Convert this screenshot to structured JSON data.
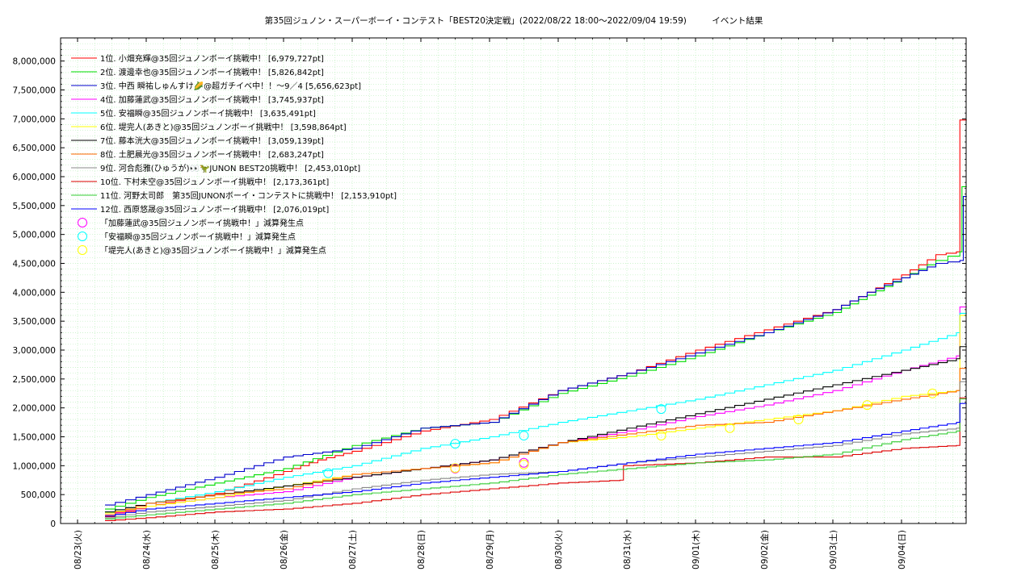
{
  "chart_data": {
    "type": "line",
    "title": "第35回ジュノン・スーパーボーイ・コンテスト「BEST20決定戦」(2022/08/22 18:00〜2022/09/04 19:59)　　　イベント結果",
    "xlabel": "",
    "ylabel": "",
    "x_tick_labels": [
      "08/23(火)",
      "08/24(水)",
      "08/25(木)",
      "08/26(金)",
      "08/27(土)",
      "08/28(日)",
      "08/29(月)",
      "08/30(火)",
      "08/31(水)",
      "09/01(木)",
      "09/02(金)",
      "09/03(土)",
      "09/04(日)"
    ],
    "y_tick_labels": [
      "0",
      "500,000",
      "1,000,000",
      "1,500,000",
      "2,000,000",
      "2,500,000",
      "3,000,000",
      "3,500,000",
      "4,000,000",
      "4,500,000",
      "5,000,000",
      "5,500,000",
      "6,000,000",
      "6,500,000",
      "7,000,000",
      "7,500,000",
      "8,000,000"
    ],
    "xlim_days": [
      0,
      13.25
    ],
    "ylim": [
      0,
      8400000
    ],
    "grid": true,
    "legend_position": "top-left",
    "series": [
      {
        "name": "1位. 小畑充輝@35回ジュノンボーイ挑戦中！ [6,979,727pt]",
        "color": "#ff0000",
        "points": [
          [
            0.4,
            120000
          ],
          [
            1,
            300000
          ],
          [
            2,
            520000
          ],
          [
            3,
            900000
          ],
          [
            3.5,
            1100000
          ],
          [
            4,
            1250000
          ],
          [
            5,
            1600000
          ],
          [
            6,
            1800000
          ],
          [
            7,
            2300000
          ],
          [
            8,
            2600000
          ],
          [
            9,
            3000000
          ],
          [
            10,
            3350000
          ],
          [
            11,
            3700000
          ],
          [
            11.5,
            4000000
          ],
          [
            12,
            4300000
          ],
          [
            12.5,
            4650000
          ],
          [
            12.8,
            4700000
          ],
          [
            12.85,
            6979727
          ],
          [
            12.95,
            6979727
          ]
        ]
      },
      {
        "name": "2位. 渡邊幸也@35回ジュノンボーイ挑戦中！ [5,826,842pt]",
        "color": "#00dd00",
        "points": [
          [
            0.4,
            250000
          ],
          [
            1,
            450000
          ],
          [
            2,
            700000
          ],
          [
            3,
            950000
          ],
          [
            4,
            1350000
          ],
          [
            5,
            1650000
          ],
          [
            6,
            1750000
          ],
          [
            7,
            2250000
          ],
          [
            8,
            2550000
          ],
          [
            9,
            2900000
          ],
          [
            10,
            3300000
          ],
          [
            11,
            3650000
          ],
          [
            11.5,
            3950000
          ],
          [
            12,
            4250000
          ],
          [
            12.5,
            4550000
          ],
          [
            12.85,
            4700000
          ],
          [
            12.88,
            5826842
          ],
          [
            12.95,
            5826842
          ]
        ]
      },
      {
        "name": "3位. 中西 瞬祐しゅんすけ🌽@超ガチイベ中！！〜9／4 [5,656,623pt]",
        "color": "#0000cc",
        "points": [
          [
            0.4,
            320000
          ],
          [
            1,
            500000
          ],
          [
            2,
            800000
          ],
          [
            3,
            1150000
          ],
          [
            4,
            1300000
          ],
          [
            5,
            1650000
          ],
          [
            6,
            1750000
          ],
          [
            7,
            2300000
          ],
          [
            8,
            2600000
          ],
          [
            9,
            2950000
          ],
          [
            10,
            3300000
          ],
          [
            11,
            3700000
          ],
          [
            11.5,
            4000000
          ],
          [
            12,
            4250000
          ],
          [
            12.5,
            4500000
          ],
          [
            12.85,
            4550000
          ],
          [
            12.9,
            5656623
          ],
          [
            12.95,
            5656623
          ]
        ]
      },
      {
        "name": "4位. 加藤蓮武@35回ジュノンボーイ挑戦中！ [3,745,937pt]",
        "color": "#ff00ff",
        "points": [
          [
            0.4,
            150000
          ],
          [
            1,
            300000
          ],
          [
            2,
            450000
          ],
          [
            3,
            550000
          ],
          [
            4,
            800000
          ],
          [
            5,
            950000
          ],
          [
            6,
            1100000
          ],
          [
            7,
            1400000
          ],
          [
            8,
            1600000
          ],
          [
            9,
            1850000
          ],
          [
            10,
            2050000
          ],
          [
            11,
            2300000
          ],
          [
            12,
            2650000
          ],
          [
            12.8,
            2900000
          ],
          [
            12.85,
            3745937
          ],
          [
            12.95,
            3745937
          ]
        ]
      },
      {
        "name": "5位. 安福瞬@35回ジュノンボーイ挑戦中！ [3,635,491pt]",
        "color": "#00ffff",
        "points": [
          [
            0.4,
            200000
          ],
          [
            1,
            350000
          ],
          [
            2,
            550000
          ],
          [
            3,
            800000
          ],
          [
            4,
            1000000
          ],
          [
            5,
            1300000
          ],
          [
            6,
            1500000
          ],
          [
            7,
            1750000
          ],
          [
            8,
            1950000
          ],
          [
            9,
            2150000
          ],
          [
            10,
            2400000
          ],
          [
            11,
            2650000
          ],
          [
            12,
            3000000
          ],
          [
            12.8,
            3300000
          ],
          [
            12.85,
            3635491
          ],
          [
            12.95,
            3635491
          ]
        ]
      },
      {
        "name": "6位. 堤完人(あきと)@35回ジュノンボーイ挑戦中！ [3,598,864pt]",
        "color": "#ffff00",
        "points": [
          [
            0.4,
            180000
          ],
          [
            1,
            300000
          ],
          [
            2,
            450000
          ],
          [
            3,
            650000
          ],
          [
            4,
            850000
          ],
          [
            5,
            950000
          ],
          [
            6,
            1050000
          ],
          [
            7,
            1400000
          ],
          [
            8,
            1500000
          ],
          [
            9,
            1650000
          ],
          [
            10,
            1800000
          ],
          [
            11,
            1950000
          ],
          [
            12,
            2200000
          ],
          [
            12.8,
            2300000
          ],
          [
            12.85,
            3598864
          ],
          [
            12.95,
            3598864
          ]
        ]
      },
      {
        "name": "7位. 藤本洸大@35回ジュノンボーイ挑戦中！ [3,059,139pt]",
        "color": "#000000",
        "points": [
          [
            0.4,
            200000
          ],
          [
            1,
            350000
          ],
          [
            2,
            500000
          ],
          [
            3,
            650000
          ],
          [
            4,
            800000
          ],
          [
            5,
            950000
          ],
          [
            6,
            1100000
          ],
          [
            7,
            1400000
          ],
          [
            8,
            1650000
          ],
          [
            9,
            1900000
          ],
          [
            10,
            2150000
          ],
          [
            11,
            2400000
          ],
          [
            12,
            2650000
          ],
          [
            12.8,
            2850000
          ],
          [
            12.85,
            3059139
          ],
          [
            12.95,
            3059139
          ]
        ]
      },
      {
        "name": "8位. 土肥晨光@35回ジュノンボーイ挑戦中！ [2,683,247pt]",
        "color": "#ff6600",
        "points": [
          [
            0.4,
            150000
          ],
          [
            1,
            350000
          ],
          [
            2,
            500000
          ],
          [
            3,
            600000
          ],
          [
            4,
            850000
          ],
          [
            5,
            950000
          ],
          [
            6,
            1050000
          ],
          [
            7,
            1400000
          ],
          [
            8,
            1550000
          ],
          [
            9,
            1700000
          ],
          [
            10,
            1750000
          ],
          [
            11,
            1950000
          ],
          [
            12,
            2150000
          ],
          [
            12.8,
            2300000
          ],
          [
            12.85,
            2683247
          ],
          [
            12.95,
            2683247
          ]
        ]
      },
      {
        "name": "9位. 河合彪雅(ひゅうが)👀🦖JUNON BEST20挑戦中！ [2,453,010pt]",
        "color": "#888888",
        "points": [
          [
            0.4,
            100000
          ],
          [
            1,
            200000
          ],
          [
            2,
            300000
          ],
          [
            3,
            400000
          ],
          [
            4,
            600000
          ],
          [
            5,
            750000
          ],
          [
            6,
            850000
          ],
          [
            7,
            900000
          ],
          [
            8,
            1050000
          ],
          [
            9,
            1150000
          ],
          [
            10,
            1250000
          ],
          [
            11,
            1350000
          ],
          [
            12,
            1550000
          ],
          [
            12.8,
            1650000
          ],
          [
            12.85,
            2453010
          ],
          [
            12.95,
            2453010
          ]
        ]
      },
      {
        "name": "10位. 下村未空@35回ジュノンボーイ挑戦中！ [2,173,361pt]",
        "color": "#dd0000",
        "points": [
          [
            0.4,
            50000
          ],
          [
            1,
            100000
          ],
          [
            2,
            200000
          ],
          [
            3,
            250000
          ],
          [
            4,
            350000
          ],
          [
            5,
            500000
          ],
          [
            6,
            600000
          ],
          [
            7,
            700000
          ],
          [
            7.9,
            750000
          ],
          [
            7.95,
            1000000
          ],
          [
            9,
            1050000
          ],
          [
            10,
            1150000
          ],
          [
            11,
            1150000
          ],
          [
            12,
            1300000
          ],
          [
            12.8,
            1350000
          ],
          [
            12.85,
            2173361
          ],
          [
            12.95,
            2173361
          ]
        ]
      },
      {
        "name": "11位. 河野太司郎　第35回JUNONボーイ・コンテストに挑戦中！ [2,153,910pt]",
        "color": "#33cc33",
        "points": [
          [
            0.4,
            80000
          ],
          [
            1,
            150000
          ],
          [
            2,
            250000
          ],
          [
            3,
            350000
          ],
          [
            4,
            500000
          ],
          [
            5,
            600000
          ],
          [
            6,
            700000
          ],
          [
            7,
            850000
          ],
          [
            8,
            950000
          ],
          [
            9,
            1050000
          ],
          [
            10,
            1100000
          ],
          [
            11,
            1200000
          ],
          [
            12,
            1450000
          ],
          [
            12.8,
            1600000
          ],
          [
            12.85,
            2153910
          ],
          [
            12.95,
            2153910
          ]
        ]
      },
      {
        "name": "12位. 西原悠晟@35回ジュノンボーイ挑戦中！ [2,076,019pt]",
        "color": "#0000ff",
        "points": [
          [
            0.4,
            130000
          ],
          [
            1,
            250000
          ],
          [
            2,
            350000
          ],
          [
            3,
            450000
          ],
          [
            4,
            550000
          ],
          [
            5,
            700000
          ],
          [
            6,
            800000
          ],
          [
            7,
            900000
          ],
          [
            8,
            1050000
          ],
          [
            9,
            1200000
          ],
          [
            10,
            1300000
          ],
          [
            11,
            1400000
          ],
          [
            12,
            1600000
          ],
          [
            12.8,
            1750000
          ],
          [
            12.85,
            2076019
          ],
          [
            12.95,
            2076019
          ]
        ]
      }
    ],
    "reduction_markers": [
      {
        "name": "「加藤蓮武@35回ジュノンボーイ挑戦中！」減算発生点",
        "color": "#ff00ff",
        "points": [
          [
            5.5,
            950000
          ],
          [
            6.5,
            1050000
          ]
        ]
      },
      {
        "name": "「安福瞬@35回ジュノンボーイ挑戦中！」減算発生点",
        "color": "#00ffff",
        "points": [
          [
            3.65,
            870000
          ],
          [
            5.5,
            1380000
          ],
          [
            6.5,
            1520000
          ],
          [
            8.5,
            1980000
          ]
        ]
      },
      {
        "name": "「堤完人(あきと)@35回ジュノンボーイ挑戦中！」減算発生点",
        "color": "#ffff00",
        "points": [
          [
            5.5,
            960000
          ],
          [
            6.5,
            1020000
          ],
          [
            8.5,
            1520000
          ],
          [
            9.5,
            1650000
          ],
          [
            10.5,
            1800000
          ],
          [
            11.5,
            2050000
          ],
          [
            12.45,
            2250000
          ]
        ]
      }
    ]
  }
}
